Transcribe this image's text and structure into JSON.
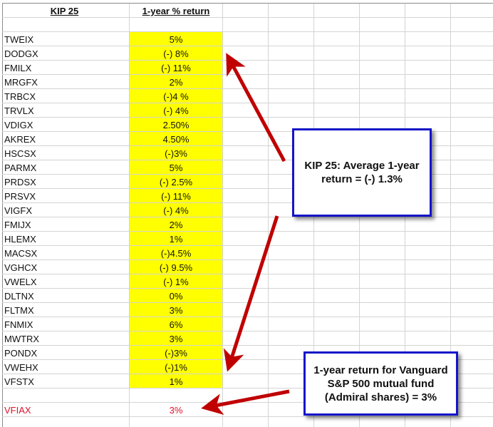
{
  "table": {
    "header": {
      "ticker": "KIP 25",
      "return": "1-year % return"
    },
    "rows": [
      {
        "ticker": "TWEIX",
        "return": "5%"
      },
      {
        "ticker": "DODGX",
        "return": "(-) 8%"
      },
      {
        "ticker": "FMILX",
        "return": "(-) 11%"
      },
      {
        "ticker": "MRGFX",
        "return": "2%"
      },
      {
        "ticker": "TRBCX",
        "return": "(-)4 %"
      },
      {
        "ticker": "TRVLX",
        "return": "(-) 4%"
      },
      {
        "ticker": "VDIGX",
        "return": "2.50%"
      },
      {
        "ticker": "AKREX",
        "return": "4.50%"
      },
      {
        "ticker": "HSCSX",
        "return": "(-)3%"
      },
      {
        "ticker": "PARMX",
        "return": "5%"
      },
      {
        "ticker": "PRDSX",
        "return": "(-) 2.5%"
      },
      {
        "ticker": "PRSVX",
        "return": "(-) 11%"
      },
      {
        "ticker": "VIGFX",
        "return": "(-) 4%"
      },
      {
        "ticker": "FMIJX",
        "return": "2%"
      },
      {
        "ticker": "HLEMX",
        "return": "1%"
      },
      {
        "ticker": "MACSX",
        "return": "(-)4.5%"
      },
      {
        "ticker": "VGHCX",
        "return": "(-) 9.5%"
      },
      {
        "ticker": "VWELX",
        "return": "(-) 1%"
      },
      {
        "ticker": "DLTNX",
        "return": "0%"
      },
      {
        "ticker": "FLTMX",
        "return": "3%"
      },
      {
        "ticker": "FNMIX",
        "return": "6%"
      },
      {
        "ticker": "MWTRX",
        "return": "3%"
      },
      {
        "ticker": "PONDX",
        "return": "(-)3%"
      },
      {
        "ticker": "VWEHX",
        "return": "(-)1%"
      },
      {
        "ticker": "VFSTX",
        "return": "1%"
      }
    ],
    "benchmark": {
      "ticker": "VFIAX",
      "return": "3%"
    }
  },
  "callouts": {
    "average": "KIP 25: Average 1-year return = (-) 1.3%",
    "benchmark": "1-year return for Vanguard S&P 500 mutual fund (Admiral shares) = 3%"
  },
  "colors": {
    "highlight": "#ffff00",
    "arrow": "#c00000",
    "callout_border": "#1414c8",
    "benchmark_text": "#e0102a"
  }
}
